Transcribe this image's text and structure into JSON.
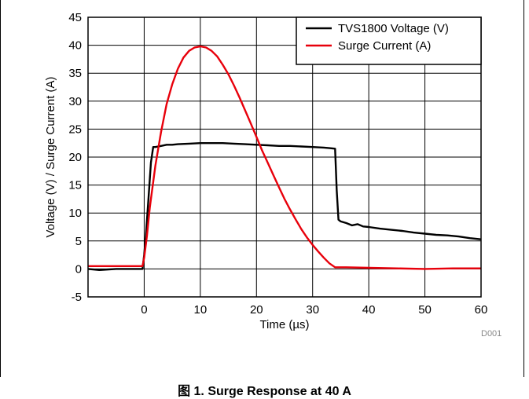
{
  "caption": "图 1. Surge Response at 40 A",
  "chart_id": "D001",
  "chart_data": {
    "type": "line",
    "xlabel": "Time (µs)",
    "ylabel": "Voltage (V) / Surge Current (A)",
    "xlim": [
      -10,
      60
    ],
    "ylim": [
      -5,
      45
    ],
    "xticks": [
      0,
      10,
      20,
      30,
      40,
      50,
      60
    ],
    "yticks": [
      -5,
      0,
      5,
      10,
      15,
      20,
      25,
      30,
      35,
      40,
      45
    ],
    "grid": true,
    "legend_position": "top-right",
    "series": [
      {
        "name": "TVS1800 Voltage (V)",
        "color": "#000000",
        "x": [
          -10,
          -8,
          -5,
          -2,
          -0.3,
          0,
          0.3,
          0.8,
          1.2,
          1.6,
          2,
          3,
          4,
          5,
          6,
          8,
          10,
          12,
          14,
          16,
          18,
          20,
          22,
          24,
          26,
          28,
          30,
          32,
          33,
          34,
          34.3,
          34.6,
          35,
          36,
          37,
          38,
          39,
          40,
          42,
          44,
          46,
          48,
          50,
          52,
          54,
          56,
          58,
          60
        ],
        "y": [
          0,
          -0.2,
          0,
          0,
          0,
          2.5,
          6,
          13,
          19,
          21.8,
          21.8,
          22,
          22.2,
          22.2,
          22.3,
          22.4,
          22.5,
          22.5,
          22.5,
          22.4,
          22.3,
          22.2,
          22.1,
          22,
          22,
          21.9,
          21.8,
          21.7,
          21.6,
          21.5,
          14,
          8.8,
          8.5,
          8.2,
          7.8,
          8,
          7.6,
          7.5,
          7.2,
          7,
          6.8,
          6.5,
          6.3,
          6.1,
          6,
          5.8,
          5.5,
          5.3
        ]
      },
      {
        "name": "Surge Current (A)",
        "color": "#e8000b",
        "x": [
          -10,
          -5,
          -1,
          -0.3,
          0,
          0.5,
          1,
          2,
          3,
          4,
          5,
          6,
          7,
          8,
          9,
          10,
          11,
          12,
          13,
          14,
          15,
          16,
          17,
          18,
          19,
          20,
          21,
          22,
          23,
          24,
          25,
          26,
          27,
          28,
          29,
          30,
          31,
          32,
          33,
          34,
          34.5,
          36,
          40,
          45,
          50,
          55,
          60
        ],
        "y": [
          0.5,
          0.5,
          0.5,
          0.5,
          2,
          6,
          11,
          18.5,
          24.5,
          29.5,
          33,
          35.8,
          37.8,
          39,
          39.6,
          39.8,
          39.6,
          39,
          38,
          36.5,
          34.8,
          32.8,
          30.6,
          28.3,
          26,
          23.6,
          21.2,
          19,
          16.8,
          14.6,
          12.5,
          10.6,
          8.8,
          7.1,
          5.6,
          4.3,
          3.1,
          2.0,
          1.0,
          0.3,
          0.3,
          0.3,
          0.2,
          0.1,
          0,
          0.1,
          0.1
        ]
      }
    ]
  }
}
